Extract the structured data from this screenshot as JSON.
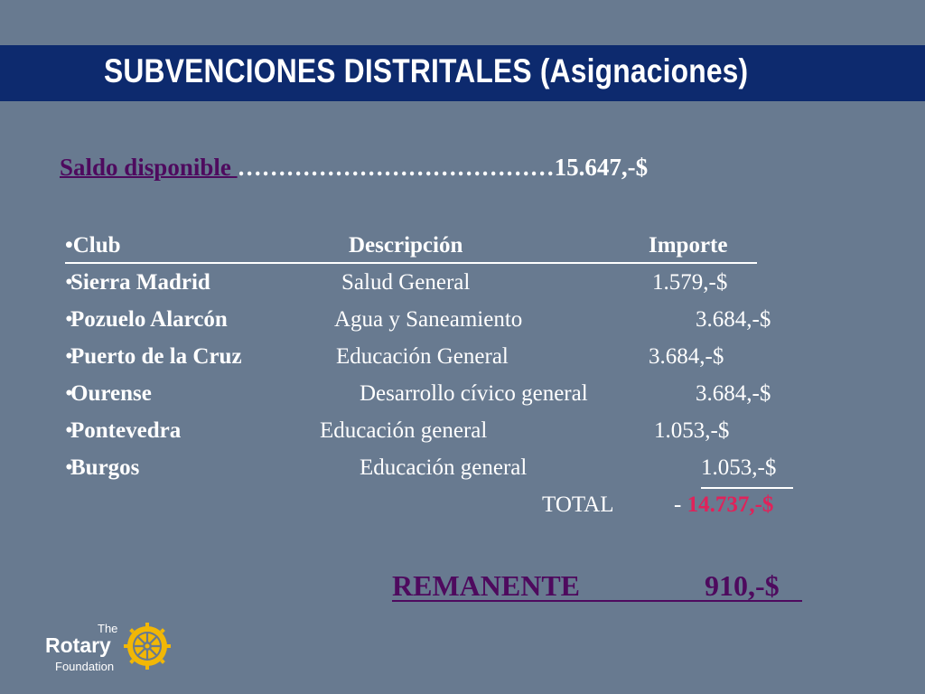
{
  "title": "SUBVENCIONES DISTRITALES  (Asignaciones)",
  "saldo": {
    "label": "Saldo disponible ",
    "dots": "…………………………………",
    "amount": "15.647,-$"
  },
  "table": {
    "header": {
      "club": "•Club",
      "descripcion": "Descripción",
      "importe": "Importe"
    },
    "rows": [
      {
        "bullet": "•",
        "club": "Sierra Madrid",
        "descripcion": "Salud General",
        "importe": "1.579,-$"
      },
      {
        "bullet": "•",
        "club": "Pozuelo Alarcón",
        "descripcion": "Agua y  Saneamiento",
        "importe": "3.684,-$"
      },
      {
        "bullet": "•",
        "club": "Puerto de la Cruz",
        "descripcion": "Educación General",
        "importe": "3.684,-$"
      },
      {
        "bullet": "•",
        "club": "Ourense",
        "descripcion": "Desarrollo cívico general",
        "importe": "3.684,-$"
      },
      {
        "bullet": "•",
        "club": "Pontevedra",
        "descripcion": "Educación general",
        "importe": "1.053,-$"
      },
      {
        "bullet": "•",
        "club": "Burgos",
        "descripcion": "Educación general",
        "importe": "1.053,-$"
      }
    ]
  },
  "total": {
    "label": "TOTAL",
    "prefix": "- ",
    "value": "14.737,-$"
  },
  "remanente": {
    "label": "REMANENTE",
    "value": "910,-$"
  },
  "logo": {
    "the": "The",
    "rotary": "Rotary",
    "foundation": "Foundation",
    "icon": "rotary-wheel-icon"
  }
}
